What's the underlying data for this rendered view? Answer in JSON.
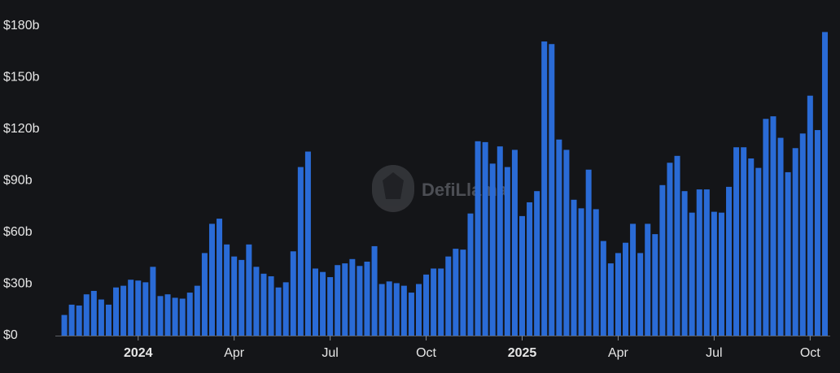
{
  "chart_data": {
    "type": "bar",
    "watermark": "DefiLlama",
    "color": "#2a6bd6",
    "categories": [
      null,
      null,
      null,
      null,
      null,
      null,
      null,
      null,
      null,
      null,
      "2024",
      null,
      null,
      null,
      null,
      null,
      null,
      null,
      null,
      null,
      null,
      null,
      null,
      "Apr",
      null,
      null,
      null,
      null,
      null,
      null,
      null,
      null,
      null,
      null,
      null,
      null,
      "Jul",
      null,
      null,
      null,
      null,
      null,
      null,
      null,
      null,
      null,
      null,
      null,
      null,
      "Oct",
      null,
      null,
      null,
      null,
      null,
      null,
      null,
      null,
      null,
      null,
      null,
      null,
      "2025",
      null,
      null,
      null,
      null,
      null,
      null,
      null,
      null,
      null,
      null,
      null,
      null,
      "Apr",
      null,
      null,
      null,
      null,
      null,
      null,
      null,
      null,
      null,
      null,
      null,
      null,
      "Jul",
      null,
      null,
      null,
      null,
      null,
      null,
      null,
      null,
      null,
      null,
      null,
      null,
      "Oct",
      null,
      null
    ],
    "values": [
      12,
      18,
      17.5,
      24,
      26,
      21,
      18,
      28,
      29,
      32.5,
      32,
      31,
      40,
      23,
      24,
      22,
      21.5,
      25,
      29,
      48,
      65,
      68,
      53,
      46,
      44,
      53,
      40,
      36,
      34.5,
      28,
      31,
      49,
      98,
      107,
      39,
      37,
      34,
      41,
      42,
      44.5,
      40.5,
      43,
      52,
      30,
      31.5,
      30.5,
      29,
      25,
      30,
      35.5,
      39,
      39,
      46,
      50.5,
      50,
      71,
      113,
      112.5,
      100,
      110,
      98,
      108,
      69.5,
      77.5,
      84,
      171,
      169.5,
      114,
      108,
      79,
      74,
      96.5,
      73.5,
      55,
      42,
      48,
      54,
      65,
      48,
      65,
      59,
      87.5,
      100.5,
      104.5,
      84,
      71.5,
      85,
      85,
      72,
      71.5,
      86.5,
      109.5,
      109.5,
      103,
      97.5,
      126,
      127.5,
      115,
      95,
      109,
      117.5,
      139.5,
      119.5,
      176.5
    ],
    "ylim": [
      0,
      180
    ],
    "yticks": [
      {
        "value": 0,
        "label": "$0"
      },
      {
        "value": 30,
        "label": "$30b"
      },
      {
        "value": 60,
        "label": "$60b"
      },
      {
        "value": 90,
        "label": "$90b"
      },
      {
        "value": 120,
        "label": "$120b"
      },
      {
        "value": 150,
        "label": "$150b"
      },
      {
        "value": 180,
        "label": "$180b"
      }
    ]
  }
}
